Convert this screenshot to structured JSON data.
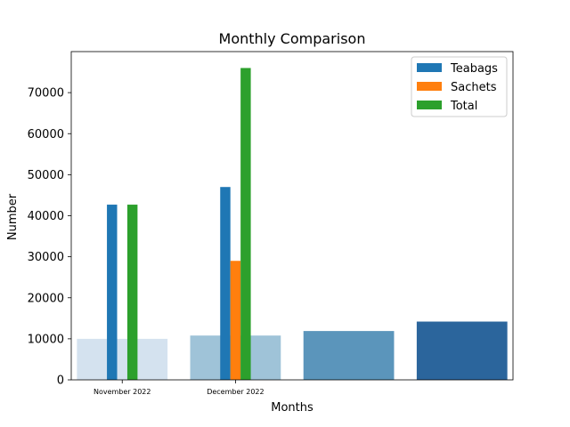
{
  "chart_data": {
    "type": "bar",
    "title": "Monthly Comparison",
    "xlabel": "Months",
    "ylabel": "Number",
    "ylim": [
      0,
      80000
    ],
    "yticks": [
      0,
      10000,
      20000,
      30000,
      40000,
      50000,
      60000,
      70000
    ],
    "categories": [
      "November 2022",
      "December 2022"
    ],
    "series": [
      {
        "name": "Teabags",
        "values": [
          42700,
          47000
        ],
        "color": "#1f77b4"
      },
      {
        "name": "Sachets",
        "values": [
          0,
          29000
        ],
        "color": "#ff7f0e"
      },
      {
        "name": "Total",
        "values": [
          42700,
          76000
        ],
        "color": "#2ca02c"
      }
    ],
    "background_bars": [
      {
        "value": 10000,
        "color": "#d4e2ef"
      },
      {
        "value": 10800,
        "color": "#9fc3d8"
      },
      {
        "value": 11900,
        "color": "#5b95bb"
      },
      {
        "value": 14200,
        "color": "#2b659c"
      }
    ],
    "legend_position": "top-right",
    "grid": false
  }
}
